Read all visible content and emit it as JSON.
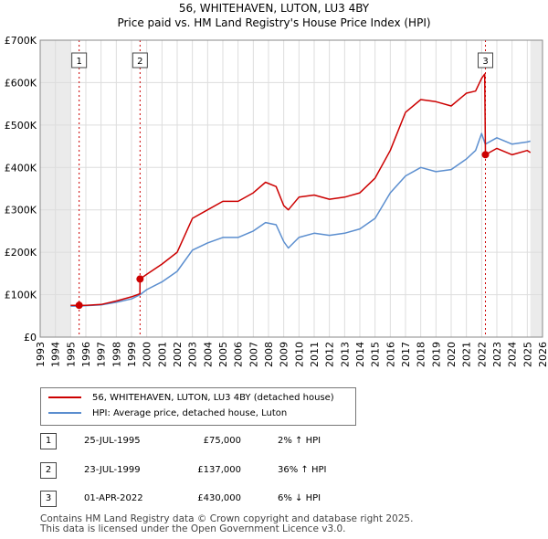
{
  "chart_data": {
    "type": "line",
    "title": "56, WHITEHAVEN, LUTON, LU3 4BY",
    "subtitle": "Price paid vs. HM Land Registry's House Price Index (HPI)",
    "xlim": [
      1993,
      2026
    ],
    "ylim": [
      0,
      700000
    ],
    "x_ticks": [
      1993,
      1994,
      1995,
      1996,
      1997,
      1998,
      1999,
      2000,
      2001,
      2002,
      2003,
      2004,
      2005,
      2006,
      2007,
      2008,
      2009,
      2010,
      2011,
      2012,
      2013,
      2014,
      2015,
      2016,
      2017,
      2018,
      2019,
      2020,
      2021,
      2022,
      2023,
      2024,
      2025,
      2026
    ],
    "y_ticks": [
      0,
      100000,
      200000,
      300000,
      400000,
      500000,
      600000,
      700000
    ],
    "y_tick_labels": [
      "£0",
      "£100K",
      "£200K",
      "£300K",
      "£400K",
      "£500K",
      "£600K",
      "£700K"
    ],
    "data_start": 1995.0,
    "data_end": 2025.2,
    "series": [
      {
        "name": "56, WHITEHAVEN, LUTON, LU3 4BY (detached house)",
        "color": "#cc0000",
        "x": [
          1995.0,
          1995.56,
          1996.0,
          1997.0,
          1998.0,
          1999.0,
          1999.55,
          1999.56,
          2000.0,
          2001.0,
          2002.0,
          2003.0,
          2004.0,
          2005.0,
          2006.0,
          2007.0,
          2007.8,
          2008.5,
          2009.0,
          2009.3,
          2010.0,
          2011.0,
          2012.0,
          2013.0,
          2014.0,
          2015.0,
          2016.0,
          2017.0,
          2018.0,
          2019.0,
          2020.0,
          2021.0,
          2021.6,
          2022.0,
          2022.2,
          2022.24,
          2022.25,
          2023.0,
          2024.0,
          2025.0,
          2025.2
        ],
        "values": [
          75000,
          75000,
          75000,
          77000,
          85000,
          95000,
          102000,
          137000,
          148000,
          172000,
          200000,
          280000,
          300000,
          320000,
          320000,
          340000,
          365000,
          355000,
          310000,
          300000,
          330000,
          335000,
          325000,
          330000,
          340000,
          375000,
          440000,
          530000,
          560000,
          555000,
          545000,
          575000,
          580000,
          610000,
          620000,
          480000,
          430000,
          445000,
          430000,
          440000,
          435000
        ]
      },
      {
        "name": "HPI: Average price, detached house, Luton",
        "color": "#5b8ecf",
        "x": [
          1995.0,
          1995.56,
          1996.0,
          1997.0,
          1998.0,
          1999.0,
          1999.56,
          2000.0,
          2001.0,
          2002.0,
          2003.0,
          2004.0,
          2005.0,
          2006.0,
          2007.0,
          2007.8,
          2008.5,
          2009.0,
          2009.3,
          2010.0,
          2011.0,
          2012.0,
          2013.0,
          2014.0,
          2015.0,
          2016.0,
          2017.0,
          2018.0,
          2019.0,
          2020.0,
          2021.0,
          2021.6,
          2022.0,
          2022.24,
          2023.0,
          2024.0,
          2025.0,
          2025.2
        ],
        "values": [
          73000,
          73000,
          74000,
          76000,
          82000,
          90000,
          100000,
          112000,
          130000,
          155000,
          205000,
          222000,
          235000,
          235000,
          250000,
          270000,
          265000,
          225000,
          210000,
          235000,
          245000,
          240000,
          245000,
          255000,
          280000,
          340000,
          380000,
          400000,
          390000,
          395000,
          420000,
          440000,
          480000,
          455000,
          470000,
          455000,
          460000,
          462000
        ]
      }
    ],
    "markers": [
      {
        "label": "1",
        "x": 1995.56,
        "value": 75000
      },
      {
        "label": "2",
        "x": 1999.56,
        "value": 137000
      },
      {
        "label": "3",
        "x": 2022.25,
        "value": 430000
      }
    ]
  },
  "legend": {
    "red_label": "56, WHITEHAVEN, LUTON, LU3 4BY (detached house)",
    "blue_label": "HPI: Average price, detached house, Luton",
    "red_color": "#cc0000",
    "blue_color": "#5b8ecf"
  },
  "transactions": [
    {
      "num": "1",
      "date": "25-JUL-1995",
      "price": "£75,000",
      "hpi": "2% ↑ HPI"
    },
    {
      "num": "2",
      "date": "23-JUL-1999",
      "price": "£137,000",
      "hpi": "36% ↑ HPI"
    },
    {
      "num": "3",
      "date": "01-APR-2022",
      "price": "£430,000",
      "hpi": "6% ↓ HPI"
    }
  ],
  "footer": {
    "line1": "Contains HM Land Registry data © Crown copyright and database right 2025.",
    "line2": "This data is licensed under the Open Government Licence v3.0."
  }
}
